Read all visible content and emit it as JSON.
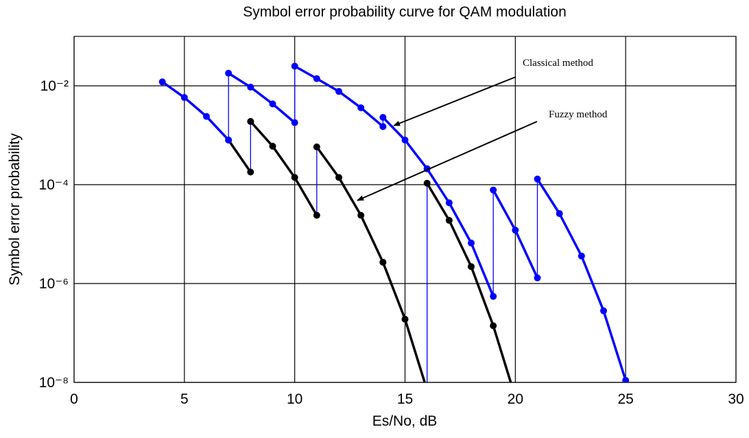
{
  "chart_data": {
    "type": "line",
    "title": "Symbol error probability curve for QAM modulation",
    "x_label": "Es/No, dB",
    "y_label": "Symbol error probability",
    "xlim": [
      0,
      30
    ],
    "xticks": [
      0,
      5,
      10,
      15,
      20,
      25,
      30
    ],
    "ylim": [
      1e-08,
      0.1
    ],
    "yticks": [
      {
        "value": 1e-08,
        "label": "10⁻⁸"
      },
      {
        "value": 1e-06,
        "label": "10⁻⁶"
      },
      {
        "value": 0.0001,
        "label": "10⁻⁴"
      },
      {
        "value": 0.01,
        "label": "10⁻²"
      }
    ],
    "log_y": true,
    "grid": true,
    "connector_color": "#0000ff",
    "annotations": [
      "Classical method",
      "Fuzzy method"
    ],
    "series": [
      {
        "color": "#0000ff",
        "segments": [
          {
            "x": [
              4,
              5,
              6,
              7
            ],
            "values": [
              0.012,
              0.0058,
              0.0024,
              0.0008
            ]
          },
          {
            "x": [
              7,
              8,
              9,
              10
            ],
            "values": [
              0.018,
              0.0094,
              0.0043,
              0.0018
            ]
          },
          {
            "x": [
              10,
              11,
              12,
              13,
              14
            ],
            "values": [
              0.025,
              0.014,
              0.0077,
              0.0036,
              0.0015
            ]
          },
          {
            "x": [
              14,
              15,
              16,
              17,
              18,
              19
            ],
            "values": [
              0.0023,
              0.0008,
              0.00021,
              4.3e-05,
              6.6e-06,
              5.5e-07
            ]
          },
          {
            "x": [
              19,
              20,
              21
            ],
            "values": [
              7.8e-05,
              1.2e-05,
              1.3e-06
            ]
          },
          {
            "x": [
              21,
              22,
              23,
              24,
              25
            ],
            "values": [
              0.00013,
              2.6e-05,
              3.6e-06,
              2.8e-07,
              1.1e-08
            ]
          }
        ]
      },
      {
        "color": "#000000",
        "segments": [
          {
            "x": [
              7,
              8
            ],
            "values": [
              0.0008,
              0.00018
            ]
          },
          {
            "x": [
              8,
              9,
              10,
              11
            ],
            "values": [
              0.0019,
              0.0006,
              0.00014,
              2.4e-05
            ]
          },
          {
            "x": [
              11,
              12,
              13,
              14,
              15,
              16
            ],
            "values": [
              0.00058,
              0.00014,
              2.4e-05,
              2.7e-06,
              1.9e-07,
              7e-09
            ]
          },
          {
            "x": [
              16,
              17,
              18,
              19,
              20
            ],
            "values": [
              0.000107,
              1.9e-05,
              2.2e-06,
              1.4e-07,
              5e-09
            ]
          }
        ]
      }
    ]
  }
}
